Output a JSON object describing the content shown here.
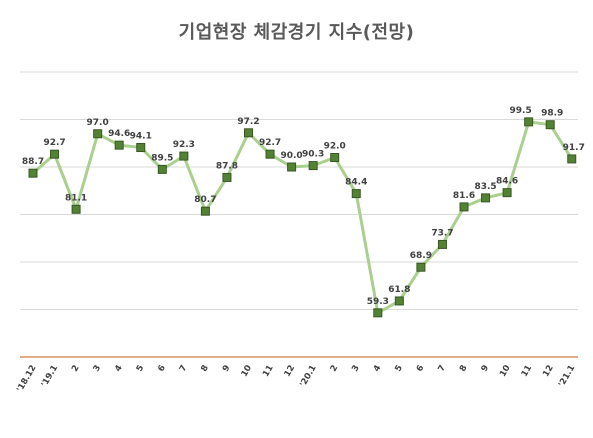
{
  "chart_data": {
    "type": "line",
    "title": "기업현장 체감경기 지수(전망)",
    "xlabel": "",
    "ylabel": "",
    "categories": [
      "'18.12",
      "'19.1",
      "2",
      "3",
      "4",
      "5",
      "6",
      "7",
      "8",
      "9",
      "10",
      "11",
      "12",
      "'20.1",
      "2",
      "3",
      "4",
      "5",
      "6",
      "7",
      "8",
      "9",
      "10",
      "11",
      "12",
      "'21.1"
    ],
    "series": [
      {
        "values": [
          88.7,
          92.7,
          81.1,
          97.0,
          94.6,
          94.1,
          89.5,
          92.3,
          80.7,
          87.8,
          97.2,
          92.7,
          90.0,
          90.3,
          92.0,
          84.4,
          59.3,
          61.8,
          68.9,
          73.7,
          81.6,
          83.5,
          84.6,
          99.5,
          98.9,
          91.7
        ],
        "labels": [
          "88.7",
          "92.7",
          "81.1",
          "97.0",
          "94.6",
          "94.1",
          "89.5",
          "92.3",
          "80.7",
          "87.8",
          "97.2",
          "92.7",
          "90.0",
          "90.3",
          "92.0",
          "84.4",
          "59.3",
          "61.8",
          "68.9",
          "73.7",
          "81.6",
          "83.5",
          "84.6",
          "99.5",
          "98.9",
          "91.7"
        ]
      }
    ],
    "ylim": [
      50,
      110
    ],
    "grid": true,
    "line_color": "#a9d08e",
    "marker_color": "#548235",
    "marker_border": "#385723",
    "axis_color": "#c55a11",
    "grid_color": "#d9d9d9"
  }
}
